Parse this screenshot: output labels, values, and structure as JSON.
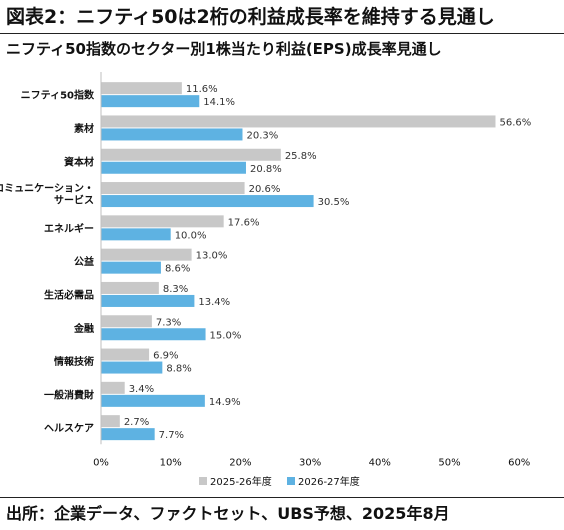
{
  "title": "図表2：ニフティ50は2桁の利益成長率を維持する見通し",
  "subtitle": "ニフティ50指数のセクター別1株当たり利益(EPS)成長率見通し",
  "source": "出所：企業データ、ファクトセット、UBS予想、2025年8月",
  "colors": {
    "series_2025": "#c8c8c8",
    "series_2026": "#5eb2e2",
    "text": "#111111",
    "axis": "#bfbfbf"
  },
  "chart_data": {
    "type": "bar",
    "orientation": "horizontal",
    "categories": [
      [
        "ニフティ50指数"
      ],
      [
        "素材"
      ],
      [
        "資本材"
      ],
      [
        "コミュニケーション・",
        "サービス"
      ],
      [
        "エネルギー"
      ],
      [
        "公益"
      ],
      [
        "生活必需品"
      ],
      [
        "金融"
      ],
      [
        "情報技術"
      ],
      [
        "一般消費財"
      ],
      [
        "ヘルスケア"
      ]
    ],
    "series": [
      {
        "name": "2025-26年度",
        "values": [
          11.6,
          56.6,
          25.8,
          20.6,
          17.6,
          13.0,
          8.3,
          7.3,
          6.9,
          3.4,
          2.7
        ],
        "labels": [
          "11.6%",
          "56.6%",
          "25.8%",
          "20.6%",
          "17.6%",
          "13.0%",
          "8.3%",
          "7.3%",
          "6.9%",
          "3.4%",
          "2.7%"
        ]
      },
      {
        "name": "2026-27年度",
        "values": [
          14.1,
          20.3,
          20.8,
          30.5,
          10.0,
          8.6,
          13.4,
          15.0,
          8.8,
          14.9,
          7.7
        ],
        "labels": [
          "14.1%",
          "20.3%",
          "20.8%",
          "30.5%",
          "10.0%",
          "8.6%",
          "13.4%",
          "15.0%",
          "8.8%",
          "14.9%",
          "7.7%"
        ]
      }
    ],
    "xlim": [
      0,
      60
    ],
    "xticks": [
      "0%",
      "10%",
      "20%",
      "30%",
      "40%",
      "50%",
      "60%"
    ],
    "grid": false,
    "legend": "bottom"
  }
}
